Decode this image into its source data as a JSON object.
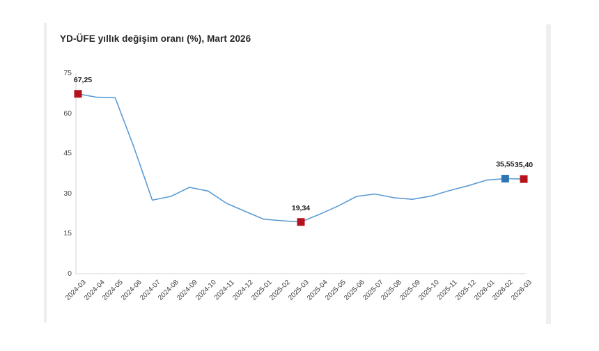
{
  "page": {
    "title": "YD-ÜFE yıllık değişim oranı (%), Mart 2026"
  },
  "chart_data": {
    "type": "line",
    "title": "YD-ÜFE yıllık değişim oranı (%), Mart 2026",
    "categories": [
      "2024-03",
      "2024-04",
      "2024-05",
      "2024-06",
      "2024-07",
      "2024-08",
      "2024-09",
      "2024-10",
      "2024-11",
      "2024-12",
      "2025-01",
      "2025-02",
      "2025-03",
      "2025-04",
      "2025-05",
      "2025-06",
      "2025-07",
      "2025-08",
      "2025-09",
      "2025-10",
      "2025-11",
      "2025-12",
      "2026-01",
      "2026-02",
      "2026-03"
    ],
    "values": [
      67.25,
      66.0,
      65.8,
      47.5,
      27.5,
      28.9,
      32.3,
      30.9,
      26.3,
      23.3,
      20.4,
      19.8,
      19.34,
      22.2,
      25.3,
      28.9,
      29.8,
      28.4,
      27.8,
      29.0,
      31.1,
      32.9,
      35.0,
      35.55,
      35.4
    ],
    "xlabel": "",
    "ylabel": "",
    "ylim": [
      0,
      75
    ],
    "yticks": [
      0,
      15,
      30,
      45,
      60,
      75
    ],
    "grid": false,
    "legend": "none",
    "line_color": "#5b9bd5",
    "axis_color": "#d6d6d6",
    "annotations": [
      {
        "index": 0,
        "label": "67,25",
        "marker": "square",
        "marker_color": "#b5121b"
      },
      {
        "index": 12,
        "label": "19,34",
        "marker": "square",
        "marker_color": "#b5121b"
      },
      {
        "index": 23,
        "label": "35,55",
        "marker": "square",
        "marker_color": "#2e75b6"
      },
      {
        "index": 24,
        "label": "35,40",
        "marker": "square",
        "marker_color": "#b5121b"
      }
    ]
  }
}
